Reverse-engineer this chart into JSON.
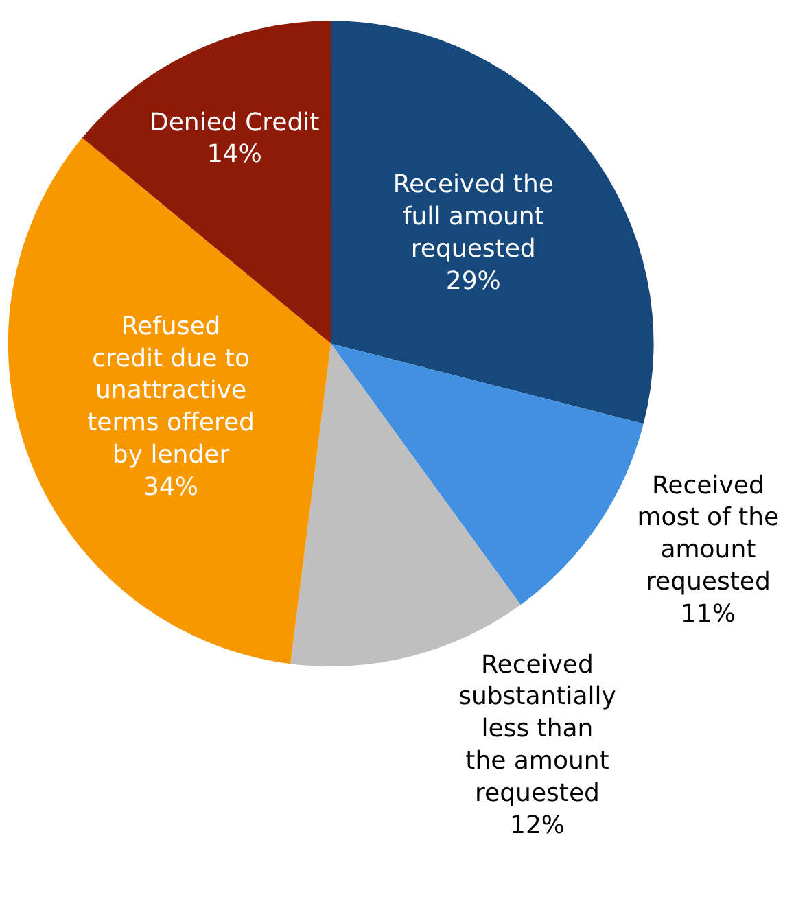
{
  "chart_data": {
    "type": "pie",
    "categories": [
      "Received the full amount requested",
      "Received most of the amount requested",
      "Received substantially less than the amount requested",
      "Refused credit due to unattractive terms offered by lender",
      "Denied Credit"
    ],
    "values": [
      29,
      11,
      12,
      34,
      14
    ],
    "value_labels": [
      "29%",
      "11%",
      "12%",
      "34%",
      "14%"
    ],
    "colors": [
      "#17487b",
      "#4291e0",
      "#bfbfbf",
      "#f79800",
      "#8e1b08"
    ],
    "legend": false
  }
}
